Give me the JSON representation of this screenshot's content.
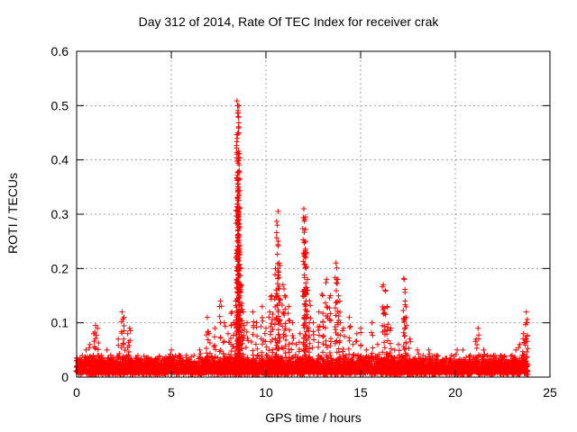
{
  "chart_data": {
    "type": "scatter",
    "title": "Day 312 of 2014, Rate Of TEC Index for receiver crak",
    "xlabel": "GPS time / hours",
    "ylabel": "ROTI / TECUs",
    "xlim": [
      0,
      25
    ],
    "ylim": [
      0,
      0.6
    ],
    "xticks": [
      "0",
      "5",
      "10",
      "15",
      "20",
      "25"
    ],
    "yticks": [
      "0",
      "0.1",
      "0.2",
      "0.3",
      "0.4",
      "0.5",
      "0.6"
    ],
    "grid": true,
    "marker": "+",
    "series": [
      {
        "name": "ROTI",
        "color": "#ff0000",
        "points": [
          [
            0.0,
            0.03
          ],
          [
            0.1,
            0.02
          ],
          [
            0.3,
            0.04
          ],
          [
            0.5,
            0.05
          ],
          [
            0.7,
            0.06
          ],
          [
            0.9,
            0.08
          ],
          [
            1.0,
            0.095
          ],
          [
            1.1,
            0.09
          ],
          [
            1.3,
            0.04
          ],
          [
            1.6,
            0.05
          ],
          [
            1.8,
            0.03
          ],
          [
            2.2,
            0.07
          ],
          [
            2.4,
            0.12
          ],
          [
            2.5,
            0.11
          ],
          [
            2.7,
            0.08
          ],
          [
            2.8,
            0.09
          ],
          [
            3.2,
            0.02
          ],
          [
            3.6,
            0.02
          ],
          [
            4.0,
            0.02
          ],
          [
            4.4,
            0.02
          ],
          [
            4.6,
            0.03
          ],
          [
            5.0,
            0.05
          ],
          [
            5.4,
            0.04
          ],
          [
            5.8,
            0.04
          ],
          [
            6.2,
            0.04
          ],
          [
            6.5,
            0.05
          ],
          [
            6.9,
            0.11
          ],
          [
            7.0,
            0.08
          ],
          [
            7.3,
            0.09
          ],
          [
            7.6,
            0.14
          ],
          [
            7.8,
            0.1
          ],
          [
            8.0,
            0.08
          ],
          [
            8.2,
            0.12
          ],
          [
            8.3,
            0.1
          ],
          [
            8.4,
            0.14
          ],
          [
            8.5,
            0.5
          ],
          [
            8.52,
            0.5
          ],
          [
            8.54,
            0.48
          ],
          [
            8.56,
            0.45
          ],
          [
            8.48,
            0.41
          ],
          [
            8.55,
            0.35
          ],
          [
            8.5,
            0.33
          ],
          [
            8.6,
            0.26
          ],
          [
            8.62,
            0.23
          ],
          [
            8.65,
            0.2
          ],
          [
            8.7,
            0.17
          ],
          [
            8.8,
            0.12
          ],
          [
            9.0,
            0.1
          ],
          [
            9.3,
            0.12
          ],
          [
            9.5,
            0.1
          ],
          [
            9.8,
            0.13
          ],
          [
            10.0,
            0.09
          ],
          [
            10.2,
            0.12
          ],
          [
            10.3,
            0.15
          ],
          [
            10.5,
            0.2
          ],
          [
            10.6,
            0.28
          ],
          [
            10.65,
            0.25
          ],
          [
            10.7,
            0.21
          ],
          [
            10.9,
            0.17
          ],
          [
            11.0,
            0.15
          ],
          [
            11.2,
            0.13
          ],
          [
            11.4,
            0.1
          ],
          [
            11.6,
            0.06
          ],
          [
            11.8,
            0.08
          ],
          [
            12.0,
            0.31
          ],
          [
            12.05,
            0.29
          ],
          [
            12.08,
            0.25
          ],
          [
            12.1,
            0.22
          ],
          [
            12.2,
            0.18
          ],
          [
            12.3,
            0.14
          ],
          [
            12.5,
            0.1
          ],
          [
            12.8,
            0.12
          ],
          [
            13.0,
            0.15
          ],
          [
            13.2,
            0.18
          ],
          [
            13.4,
            0.15
          ],
          [
            13.7,
            0.21
          ],
          [
            13.8,
            0.18
          ],
          [
            13.9,
            0.14
          ],
          [
            14.1,
            0.09
          ],
          [
            14.4,
            0.11
          ],
          [
            14.6,
            0.06
          ],
          [
            14.8,
            0.08
          ],
          [
            15.0,
            0.09
          ],
          [
            15.3,
            0.05
          ],
          [
            15.6,
            0.1
          ],
          [
            15.9,
            0.06
          ],
          [
            16.2,
            0.17
          ],
          [
            16.3,
            0.16
          ],
          [
            16.4,
            0.13
          ],
          [
            16.6,
            0.09
          ],
          [
            16.8,
            0.05
          ],
          [
            17.0,
            0.06
          ],
          [
            17.3,
            0.18
          ],
          [
            17.35,
            0.14
          ],
          [
            17.4,
            0.11
          ],
          [
            17.6,
            0.07
          ],
          [
            18.0,
            0.05
          ],
          [
            18.3,
            0.04
          ],
          [
            18.6,
            0.05
          ],
          [
            19.0,
            0.04
          ],
          [
            19.4,
            0.03
          ],
          [
            19.8,
            0.04
          ],
          [
            20.1,
            0.05
          ],
          [
            20.4,
            0.05
          ],
          [
            20.8,
            0.04
          ],
          [
            21.1,
            0.07
          ],
          [
            21.2,
            0.09
          ],
          [
            21.5,
            0.05
          ],
          [
            21.8,
            0.03
          ],
          [
            22.1,
            0.04
          ],
          [
            22.4,
            0.04
          ],
          [
            22.7,
            0.03
          ],
          [
            23.0,
            0.04
          ],
          [
            23.2,
            0.05
          ],
          [
            23.4,
            0.06
          ],
          [
            23.6,
            0.08
          ],
          [
            23.75,
            0.12
          ],
          [
            23.8,
            0.1
          ],
          [
            23.7,
            0.07
          ],
          [
            23.8,
            0.01
          ]
        ],
        "baseline": {
          "range": [
            0.0,
            23.8
          ],
          "low": 0.005,
          "high": 0.03
        }
      }
    ]
  }
}
